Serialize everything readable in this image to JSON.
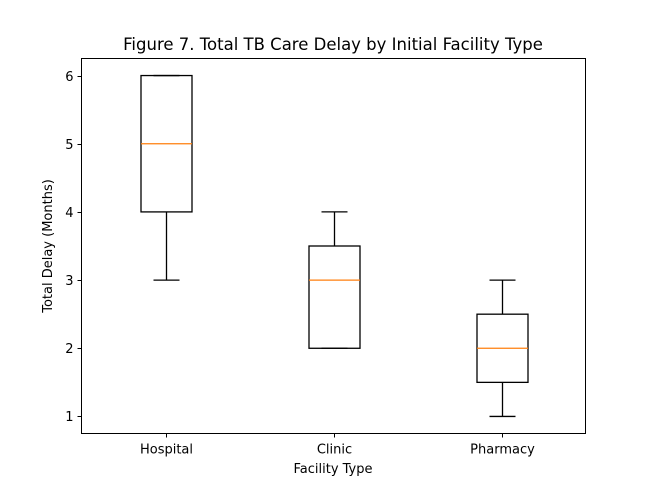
{
  "chart_data": {
    "type": "box",
    "title": "Figure 7. Total TB Care Delay by Initial Facility Type",
    "xlabel": "Facility Type",
    "ylabel": "Total Delay (Months)",
    "categories": [
      "Hospital",
      "Clinic",
      "Pharmacy"
    ],
    "boxes": [
      {
        "name": "Hospital",
        "whisker_low": 3,
        "q1": 4,
        "median": 5,
        "q3": 6,
        "whisker_high": 6
      },
      {
        "name": "Clinic",
        "whisker_low": 2,
        "q1": 2,
        "median": 3,
        "q3": 3.5,
        "whisker_high": 4
      },
      {
        "name": "Pharmacy",
        "whisker_low": 1,
        "q1": 1.5,
        "median": 2,
        "q3": 2.5,
        "whisker_high": 3
      }
    ],
    "yticks": [
      1,
      2,
      3,
      4,
      5,
      6
    ],
    "ytick_labels": [
      "1",
      "2",
      "3",
      "4",
      "5",
      "6"
    ],
    "ylim": [
      0.75,
      6.25
    ],
    "grid": false,
    "colors": {
      "box": "#000000",
      "median": "#ff7f0e"
    }
  }
}
